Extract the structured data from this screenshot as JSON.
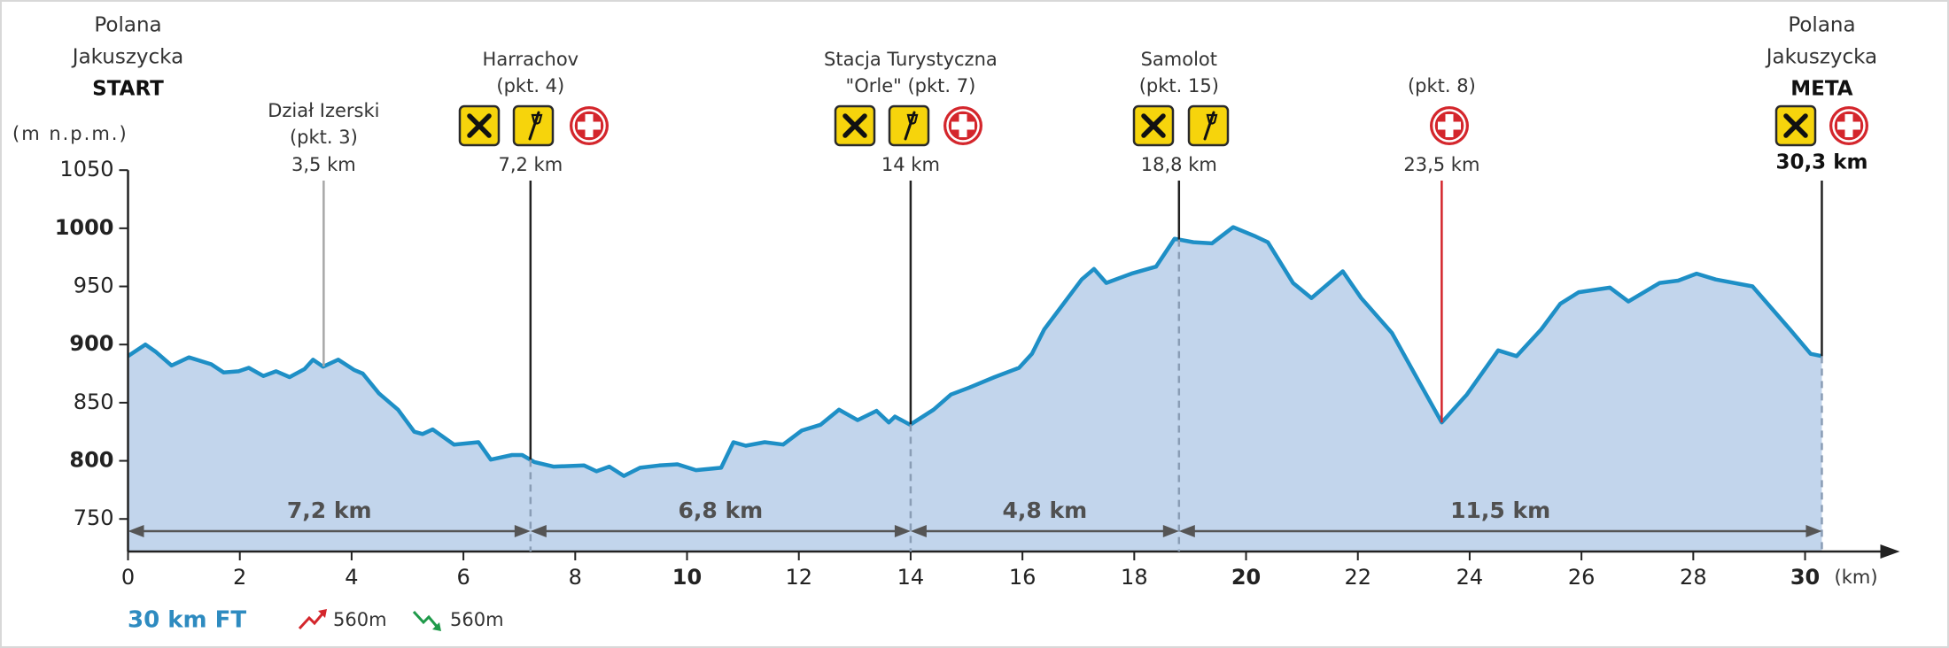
{
  "chart_data": {
    "type": "area",
    "x": [
      0,
      0.31,
      0.49,
      0.78,
      1.09,
      1.49,
      1.71,
      1.98,
      2.16,
      2.42,
      2.65,
      2.89,
      3.16,
      3.31,
      3.49,
      3.76,
      4.05,
      4.2,
      4.49,
      4.83,
      5.12,
      5.27,
      5.45,
      5.83,
      6.27,
      6.49,
      6.87,
      7.05,
      7.27,
      7.61,
      8.16,
      8.38,
      8.61,
      8.87,
      9.16,
      9.5,
      9.83,
      10.16,
      10.61,
      10.83,
      11.05,
      11.39,
      11.72,
      12.05,
      12.39,
      12.72,
      13.05,
      13.39,
      13.61,
      13.72,
      13.99,
      14.41,
      14.72,
      15.05,
      15.5,
      15.94,
      16.17,
      16.39,
      17.06,
      17.28,
      17.5,
      17.95,
      18.39,
      18.72,
      19.06,
      19.39,
      19.77,
      20.17,
      20.39,
      20.84,
      21.17,
      21.73,
      22.06,
      22.61,
      23.06,
      23.5,
      23.95,
      24.51,
      24.84,
      25.28,
      25.62,
      25.95,
      26.51,
      26.84,
      27.4,
      27.73,
      28.06,
      28.4,
      29.06,
      29.73,
      30.1,
      30.3
    ],
    "values": [
      890,
      900,
      894,
      882,
      889,
      883,
      876,
      877,
      880,
      873,
      877,
      872,
      879,
      887,
      881,
      887,
      878,
      875,
      858,
      844,
      825,
      823,
      827,
      814,
      816,
      801,
      805,
      805,
      799,
      795,
      796,
      791,
      795,
      787,
      794,
      796,
      797,
      792,
      794,
      816,
      813,
      816,
      814,
      826,
      831,
      844,
      835,
      843,
      833,
      838,
      831,
      844,
      857,
      863,
      872,
      880,
      892,
      913,
      956,
      965,
      953,
      961,
      967,
      991,
      988,
      987,
      1001,
      993,
      988,
      953,
      940,
      963,
      940,
      910,
      871,
      833,
      857,
      895,
      890,
      913,
      935,
      945,
      949,
      937,
      953,
      955,
      961,
      956,
      950,
      913,
      892,
      890
    ],
    "color": "#1e8fc6",
    "fill": "#c2d5ec",
    "xlim": [
      0,
      31.6
    ],
    "ylim": [
      722,
      1050
    ],
    "xticks": [
      0,
      2,
      4,
      6,
      8,
      10,
      12,
      14,
      16,
      18,
      20,
      22,
      24,
      26,
      28,
      30
    ],
    "yticks": [
      750,
      800,
      850,
      900,
      950,
      1000,
      1050
    ],
    "ylabel": "(m n.p.m.)",
    "xlabel": "(km)",
    "checkpoints": [
      {
        "km": 0,
        "lines": [
          "Polana",
          "Jakuszycka",
          "START"
        ]
      },
      {
        "km": 3.5,
        "lines": [
          "Dział Izerski",
          "(pkt. 3)"
        ],
        "distance": "3,5 km",
        "color": "#a8a8a8"
      },
      {
        "km": 7.2,
        "lines": [
          "Harrachov",
          "(pkt. 4)"
        ],
        "distance": "7,2 km",
        "color": "#222222"
      },
      {
        "km": 14,
        "lines": [
          "Stacja Turystyczna",
          "\"Orle\" (pkt. 7)"
        ],
        "distance": "14 km",
        "color": "#222222"
      },
      {
        "km": 18.8,
        "lines": [
          "Samolot",
          "(pkt. 15)"
        ],
        "distance": "18,8 km",
        "color": "#222222"
      },
      {
        "km": 23.5,
        "lines": [
          "(pkt. 8)"
        ],
        "distance": "23,5 km",
        "color": "#d4262c"
      },
      {
        "km": 30.3,
        "lines": [
          "Polana",
          "Jakuszycka",
          "META"
        ],
        "distance": "30,3 km",
        "color": "#222222"
      }
    ],
    "segments": [
      {
        "label": "7,2 km",
        "from": 0,
        "to": 7.2
      },
      {
        "label": "6,8 km",
        "from": 7.2,
        "to": 14
      },
      {
        "label": "4,8 km",
        "from": 14,
        "to": 18.8
      },
      {
        "label": "11,5 km",
        "from": 18.8,
        "to": 30.3
      }
    ],
    "route_name": "30 km FT",
    "ascent": "560m",
    "descent": "560m"
  }
}
